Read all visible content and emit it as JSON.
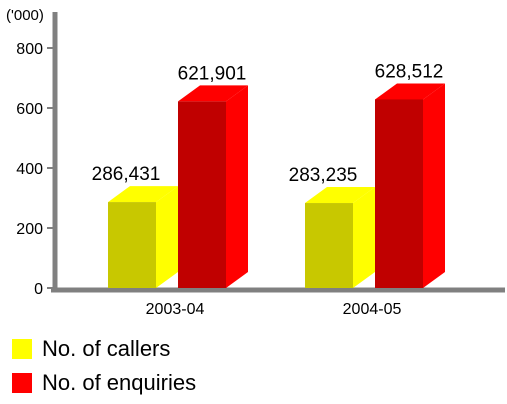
{
  "chart_data": {
    "type": "bar",
    "unit_label": "('000)",
    "categories": [
      "2003-04",
      "2004-05"
    ],
    "series": [
      {
        "name": "No. of callers",
        "values": [
          286.431,
          283.235
        ],
        "labels": [
          "286,431",
          "283,235"
        ],
        "color": "#c8c800",
        "side_color": "#ffff00",
        "top_color": "#ffff00"
      },
      {
        "name": "No. of enquiries",
        "values": [
          621.901,
          628.512
        ],
        "labels": [
          "621,901",
          "628,512"
        ],
        "color": "#c00000",
        "side_color": "#ff0000",
        "top_color": "#ff0000"
      }
    ],
    "y_ticks": [
      "0",
      "200",
      "400",
      "600",
      "800"
    ],
    "ylim": [
      0,
      900
    ],
    "grid": false,
    "legend_position": "bottom-left"
  }
}
